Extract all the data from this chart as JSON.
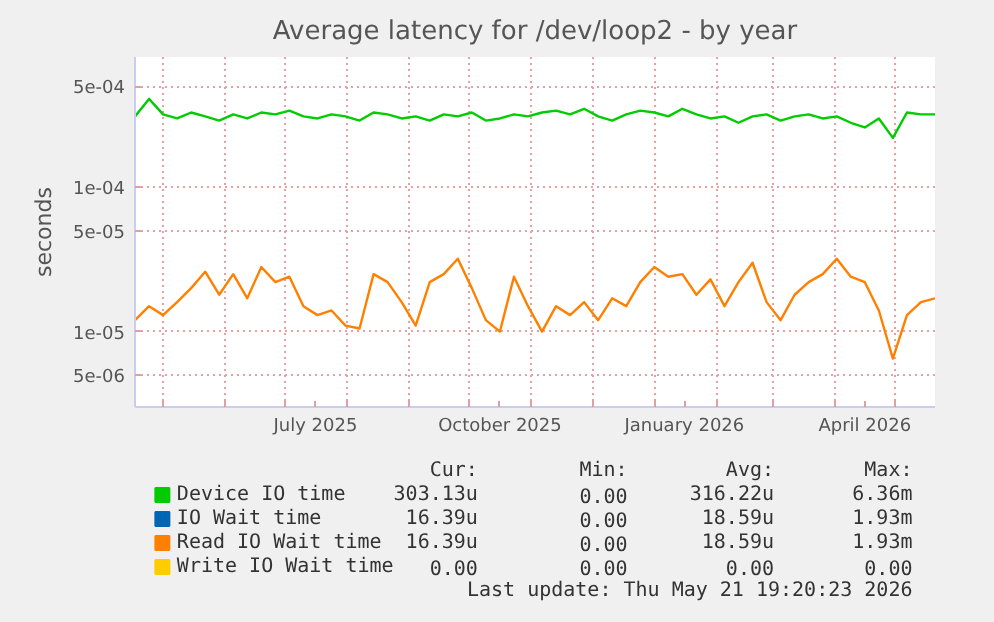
{
  "chart_data": {
    "type": "line",
    "title": "Average latency for /dev/loop2 - by year",
    "ylabel": "seconds",
    "x": [
      "2025-04-17",
      "2025-04-24",
      "2025-05-01",
      "2025-05-08",
      "2025-05-15",
      "2025-05-22",
      "2025-05-29",
      "2025-06-05",
      "2025-06-12",
      "2025-06-19",
      "2025-06-26",
      "2025-07-03",
      "2025-07-10",
      "2025-07-17",
      "2025-07-24",
      "2025-07-31",
      "2025-08-07",
      "2025-08-14",
      "2025-08-21",
      "2025-08-28",
      "2025-09-04",
      "2025-09-11",
      "2025-09-18",
      "2025-09-25",
      "2025-10-02",
      "2025-10-09",
      "2025-10-16",
      "2025-10-23",
      "2025-10-30",
      "2025-11-06",
      "2025-11-13",
      "2025-11-20",
      "2025-11-27",
      "2025-12-04",
      "2025-12-11",
      "2025-12-18",
      "2025-12-25",
      "2026-01-01",
      "2026-01-08",
      "2026-01-15",
      "2026-01-22",
      "2026-01-29",
      "2026-02-05",
      "2026-02-12",
      "2026-02-19",
      "2026-02-26",
      "2026-03-05",
      "2026-03-12",
      "2026-03-19",
      "2026-03-26",
      "2026-04-02",
      "2026-04-09",
      "2026-04-16",
      "2026-04-23",
      "2026-04-30",
      "2026-05-07",
      "2026-05-14",
      "2026-05-21"
    ],
    "series": [
      {
        "name": "Device IO time",
        "color": "#00cc00",
        "values": [
          0.00031,
          0.00041,
          0.00032,
          0.0003,
          0.00033,
          0.00031,
          0.00029,
          0.00032,
          0.0003,
          0.00033,
          0.00032,
          0.00034,
          0.00031,
          0.0003,
          0.00032,
          0.00031,
          0.00029,
          0.00033,
          0.00032,
          0.0003,
          0.00031,
          0.00029,
          0.00032,
          0.00031,
          0.00033,
          0.00029,
          0.0003,
          0.00032,
          0.00031,
          0.00033,
          0.00034,
          0.00032,
          0.00035,
          0.00031,
          0.00029,
          0.00032,
          0.00034,
          0.00033,
          0.00031,
          0.00035,
          0.00032,
          0.0003,
          0.00031,
          0.00028,
          0.00031,
          0.00032,
          0.00029,
          0.00031,
          0.00032,
          0.0003,
          0.00031,
          0.00028,
          0.00026,
          0.0003,
          0.00022,
          0.00033,
          0.00032,
          0.00032
        ]
      },
      {
        "name": "IO Wait time",
        "color": "#0066b3",
        "values": [
          null,
          null,
          null,
          null,
          null,
          null,
          null,
          null,
          null,
          null,
          null,
          null,
          null,
          null,
          null,
          null,
          null,
          null,
          null,
          null,
          null,
          null,
          null,
          null,
          null,
          null,
          null,
          null,
          null,
          null,
          null,
          null,
          null,
          null,
          null,
          null,
          null,
          null,
          null,
          null,
          null,
          null,
          null,
          null,
          null,
          null,
          null,
          null,
          null,
          null,
          null,
          null,
          null,
          null,
          null,
          null,
          null,
          null
        ]
      },
      {
        "name": "Read IO Wait time",
        "color": "#ff8000",
        "values": [
          1.2e-05,
          1.5e-05,
          1.3e-05,
          1.6e-05,
          2e-05,
          2.6e-05,
          1.8e-05,
          2.5e-05,
          1.7e-05,
          2.8e-05,
          2.2e-05,
          2.4e-05,
          1.5e-05,
          1.3e-05,
          1.4e-05,
          1.1e-05,
          1.05e-05,
          2.5e-05,
          2.2e-05,
          1.6e-05,
          1.1e-05,
          2.2e-05,
          2.5e-05,
          3.2e-05,
          2e-05,
          1.2e-05,
          1e-05,
          2.4e-05,
          1.5e-05,
          1e-05,
          1.5e-05,
          1.3e-05,
          1.6e-05,
          1.2e-05,
          1.7e-05,
          1.5e-05,
          2.2e-05,
          2.8e-05,
          2.4e-05,
          2.5e-05,
          1.8e-05,
          2.3e-05,
          1.5e-05,
          2.2e-05,
          3e-05,
          1.6e-05,
          1.2e-05,
          1.8e-05,
          2.2e-05,
          2.5e-05,
          3.2e-05,
          2.4e-05,
          2.2e-05,
          1.4e-05,
          6.5e-06,
          1.3e-05,
          1.6e-05,
          1.7e-05
        ]
      },
      {
        "name": "Write IO Wait time",
        "color": "#ffcc00",
        "values": [
          null,
          null,
          null,
          null,
          null,
          null,
          null,
          null,
          null,
          null,
          null,
          null,
          null,
          null,
          null,
          null,
          null,
          null,
          null,
          null,
          null,
          null,
          null,
          null,
          null,
          null,
          null,
          null,
          null,
          null,
          null,
          null,
          null,
          null,
          null,
          null,
          null,
          null,
          null,
          null,
          null,
          null,
          null,
          null,
          null,
          null,
          null,
          null,
          null,
          null,
          null,
          null,
          null,
          null,
          null,
          null,
          null,
          null
        ]
      }
    ],
    "xlim": [
      "2025-04-17",
      "2026-05-21"
    ],
    "xticks": [
      {
        "value": "2025-05-01",
        "label": null
      },
      {
        "value": "2025-06-01",
        "label": null
      },
      {
        "value": "2025-07-01",
        "label": null
      },
      {
        "value": "2025-07-16",
        "label": "July 2025"
      },
      {
        "value": "2025-08-01",
        "label": null
      },
      {
        "value": "2025-09-01",
        "label": null
      },
      {
        "value": "2025-10-01",
        "label": null
      },
      {
        "value": "2025-10-16",
        "label": "October 2025"
      },
      {
        "value": "2025-11-01",
        "label": null
      },
      {
        "value": "2025-12-01",
        "label": null
      },
      {
        "value": "2026-01-01",
        "label": null
      },
      {
        "value": "2026-01-16",
        "label": "January 2026"
      },
      {
        "value": "2026-02-01",
        "label": null
      },
      {
        "value": "2026-03-01",
        "label": null
      },
      {
        "value": "2026-04-01",
        "label": null
      },
      {
        "value": "2026-04-16",
        "label": "April 2026"
      },
      {
        "value": "2026-05-01",
        "label": null
      }
    ],
    "ylim": [
      3e-06,
      0.0008
    ],
    "yticks": [
      {
        "value": 5e-06,
        "label": "5e-06"
      },
      {
        "value": 1e-05,
        "label": "1e-05"
      },
      {
        "value": 5e-05,
        "label": "5e-05"
      },
      {
        "value": 0.0001,
        "label": "1e-04"
      },
      {
        "value": 0.0005,
        "label": "5e-04"
      }
    ],
    "log": "y",
    "grid": true,
    "legend": "bottom",
    "annotations": [
      "Cur:",
      "Min:",
      "Avg:",
      "Max:",
      "303.13u",
      "0.00",
      "316.22u",
      "6.36m",
      "16.39u",
      "0.00",
      "18.59u",
      "1.93m",
      "16.39u",
      "0.00",
      "18.59u",
      "1.93m",
      "0.00",
      "0.00",
      "0.00",
      "0.00",
      "Last update: Thu May 21 19:20:23 2026"
    ]
  }
}
